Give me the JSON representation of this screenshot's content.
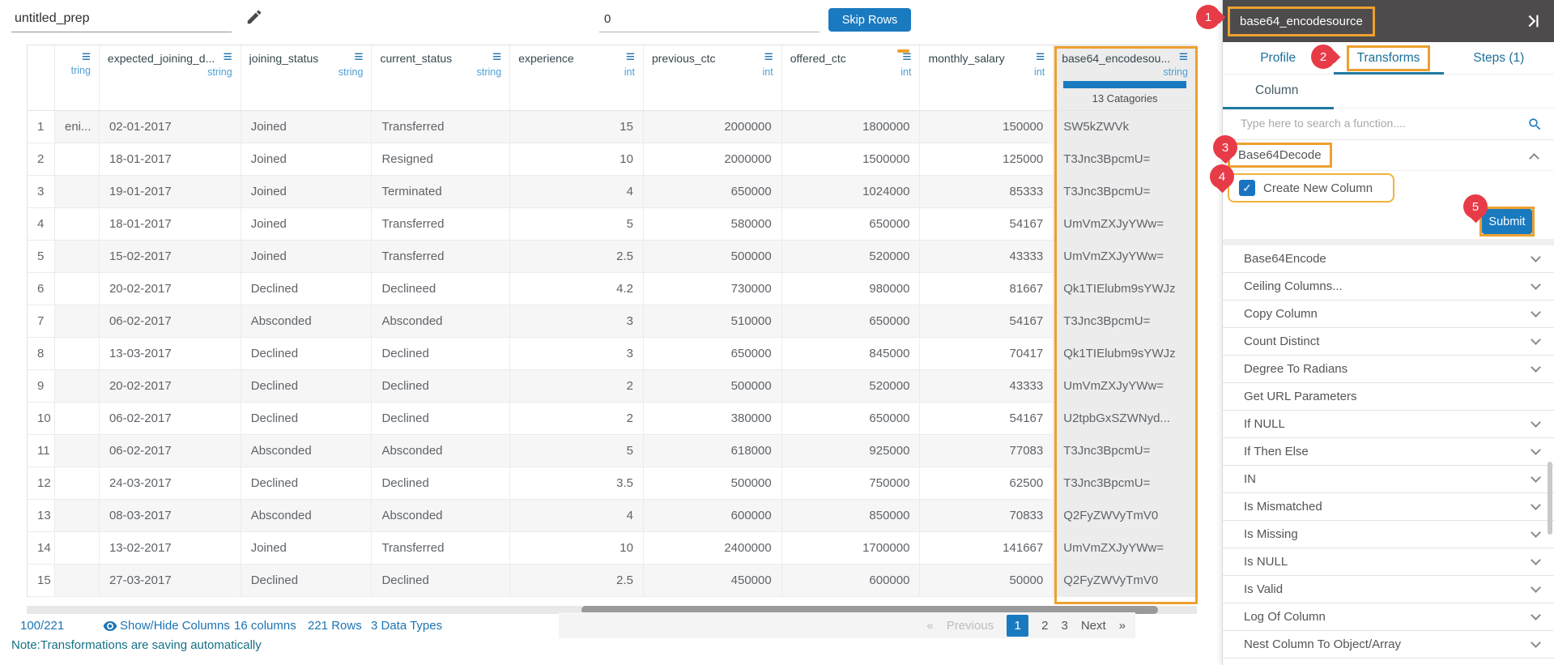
{
  "top_bar": {
    "prep_name": "untitled_prep",
    "skip_rows_value": "0",
    "skip_rows_button": "Skip Rows"
  },
  "table": {
    "columns": [
      {
        "label": "",
        "type": "",
        "kind": "rownum"
      },
      {
        "label": "",
        "type": "tring",
        "kind": "clipped"
      },
      {
        "label": "expected_joining_d...",
        "type": "string",
        "align": "left"
      },
      {
        "label": "joining_status",
        "type": "string",
        "align": "left"
      },
      {
        "label": "current_status",
        "type": "string",
        "align": "left"
      },
      {
        "label": "experience",
        "type": "int",
        "align": "right"
      },
      {
        "label": "previous_ctc",
        "type": "int",
        "align": "right"
      },
      {
        "label": "offered_ctc",
        "type": "int",
        "align": "right",
        "flag": true
      },
      {
        "label": "monthly_salary",
        "type": "int",
        "align": "right"
      },
      {
        "label": "base64_encodesou...",
        "type": "string",
        "align": "left",
        "selected": true
      }
    ],
    "selected_column": {
      "categories_label": "13 Catagories"
    },
    "rows": [
      [
        "1",
        "eni...",
        "02-01-2017",
        "Joined",
        "Transferred",
        "15",
        "2000000",
        "1800000",
        "150000",
        "SW5kZWVk"
      ],
      [
        "2",
        "",
        "18-01-2017",
        "Joined",
        "Resigned",
        "10",
        "2000000",
        "1500000",
        "125000",
        "T3Jnc3BpcmU="
      ],
      [
        "3",
        "",
        "19-01-2017",
        "Joined",
        "Terminated",
        "4",
        "650000",
        "1024000",
        "85333",
        "T3Jnc3BpcmU="
      ],
      [
        "4",
        "",
        "18-01-2017",
        "Joined",
        "Transferred",
        "5",
        "580000",
        "650000",
        "54167",
        "UmVmZXJyYWw="
      ],
      [
        "5",
        "",
        "15-02-2017",
        "Joined",
        "Transferred",
        "2.5",
        "500000",
        "520000",
        "43333",
        "UmVmZXJyYWw="
      ],
      [
        "6",
        "",
        "20-02-2017",
        "Declined",
        "Declineed",
        "4.2",
        "730000",
        "980000",
        "81667",
        "Qk1TIElubm9sYWJz"
      ],
      [
        "7",
        "",
        "06-02-2017",
        "Absconded",
        "Absconded",
        "3",
        "510000",
        "650000",
        "54167",
        "T3Jnc3BpcmU="
      ],
      [
        "8",
        "",
        "13-03-2017",
        "Declined",
        "Declined",
        "3",
        "650000",
        "845000",
        "70417",
        "Qk1TIElubm9sYWJz"
      ],
      [
        "9",
        "",
        "20-02-2017",
        "Declined",
        "Declined",
        "2",
        "500000",
        "520000",
        "43333",
        "UmVmZXJyYWw="
      ],
      [
        "10",
        "",
        "06-02-2017",
        "Declined",
        "Declined",
        "2",
        "380000",
        "650000",
        "54167",
        "U2tpbGxSZWNyd..."
      ],
      [
        "11",
        "",
        "06-02-2017",
        "Absconded",
        "Absconded",
        "5",
        "618000",
        "925000",
        "77083",
        "T3Jnc3BpcmU="
      ],
      [
        "12",
        "",
        "24-03-2017",
        "Declined",
        "Declined",
        "3.5",
        "500000",
        "750000",
        "62500",
        "T3Jnc3BpcmU="
      ],
      [
        "13",
        "",
        "08-03-2017",
        "Absconded",
        "Absconded",
        "4",
        "600000",
        "850000",
        "70833",
        "Q2FyZWVyTmV0"
      ],
      [
        "14",
        "",
        "13-02-2017",
        "Joined",
        "Transferred",
        "10",
        "2400000",
        "1700000",
        "141667",
        "UmVmZXJyYWw="
      ],
      [
        "15",
        "",
        "27-03-2017",
        "Declined",
        "Declined",
        "2.5",
        "450000",
        "600000",
        "50000",
        "Q2FyZWVyTmV0"
      ]
    ]
  },
  "footer": {
    "count": "100/221",
    "show_hide": "Show/Hide Columns",
    "columns_info": "16 columns",
    "rows_info": "221 Rows",
    "types_info": "3 Data Types",
    "note": "Note:Transformations are saving automatically",
    "pagination": {
      "first": "«",
      "prev": "Previous",
      "pages": [
        "1",
        "2",
        "3"
      ],
      "active_page": "1",
      "next": "Next",
      "last": "»"
    }
  },
  "sidebar": {
    "title": "base64_encodesource",
    "tabs": [
      "Profile",
      "Transforms",
      "Steps (1)"
    ],
    "active_tab": "Transforms",
    "subtab": "Column",
    "search_placeholder": "Type here to search a function....",
    "expanded_function": {
      "label": "Base64Decode",
      "checkbox_label": "Create New Column",
      "checkbox_checked": true,
      "submit_label": "Submit"
    },
    "functions": [
      {
        "label": "Base64Encode",
        "chevron": true
      },
      {
        "label": "Ceiling Columns...",
        "chevron": true
      },
      {
        "label": "Copy Column",
        "chevron": true
      },
      {
        "label": "Count Distinct",
        "chevron": true
      },
      {
        "label": "Degree To Radians",
        "chevron": true
      },
      {
        "label": "Get URL Parameters",
        "chevron": false
      },
      {
        "label": "If NULL",
        "chevron": true
      },
      {
        "label": "If Then Else",
        "chevron": true
      },
      {
        "label": "IN",
        "chevron": true
      },
      {
        "label": "Is Mismatched",
        "chevron": true
      },
      {
        "label": "Is Missing",
        "chevron": true
      },
      {
        "label": "Is NULL",
        "chevron": true
      },
      {
        "label": "Is Valid",
        "chevron": true
      },
      {
        "label": "Log Of Column",
        "chevron": true
      },
      {
        "label": "Nest Column To Object/Array",
        "chevron": true
      }
    ]
  },
  "annotations": [
    "1",
    "2",
    "3",
    "4",
    "5"
  ],
  "colors": {
    "accent_blue": "#1a7abf",
    "highlight_orange": "#eda02f",
    "badge_red": "#e73b47",
    "header_dark": "#4d4b4c",
    "link_blue": "#1c74b4",
    "note_teal": "#157085"
  },
  "icons": [
    "pencil-icon",
    "menu-icon",
    "eye-icon",
    "search-icon",
    "collapse-right-icon",
    "chevron-down-icon",
    "chevron-up-icon",
    "checkbox-checked-icon"
  ]
}
